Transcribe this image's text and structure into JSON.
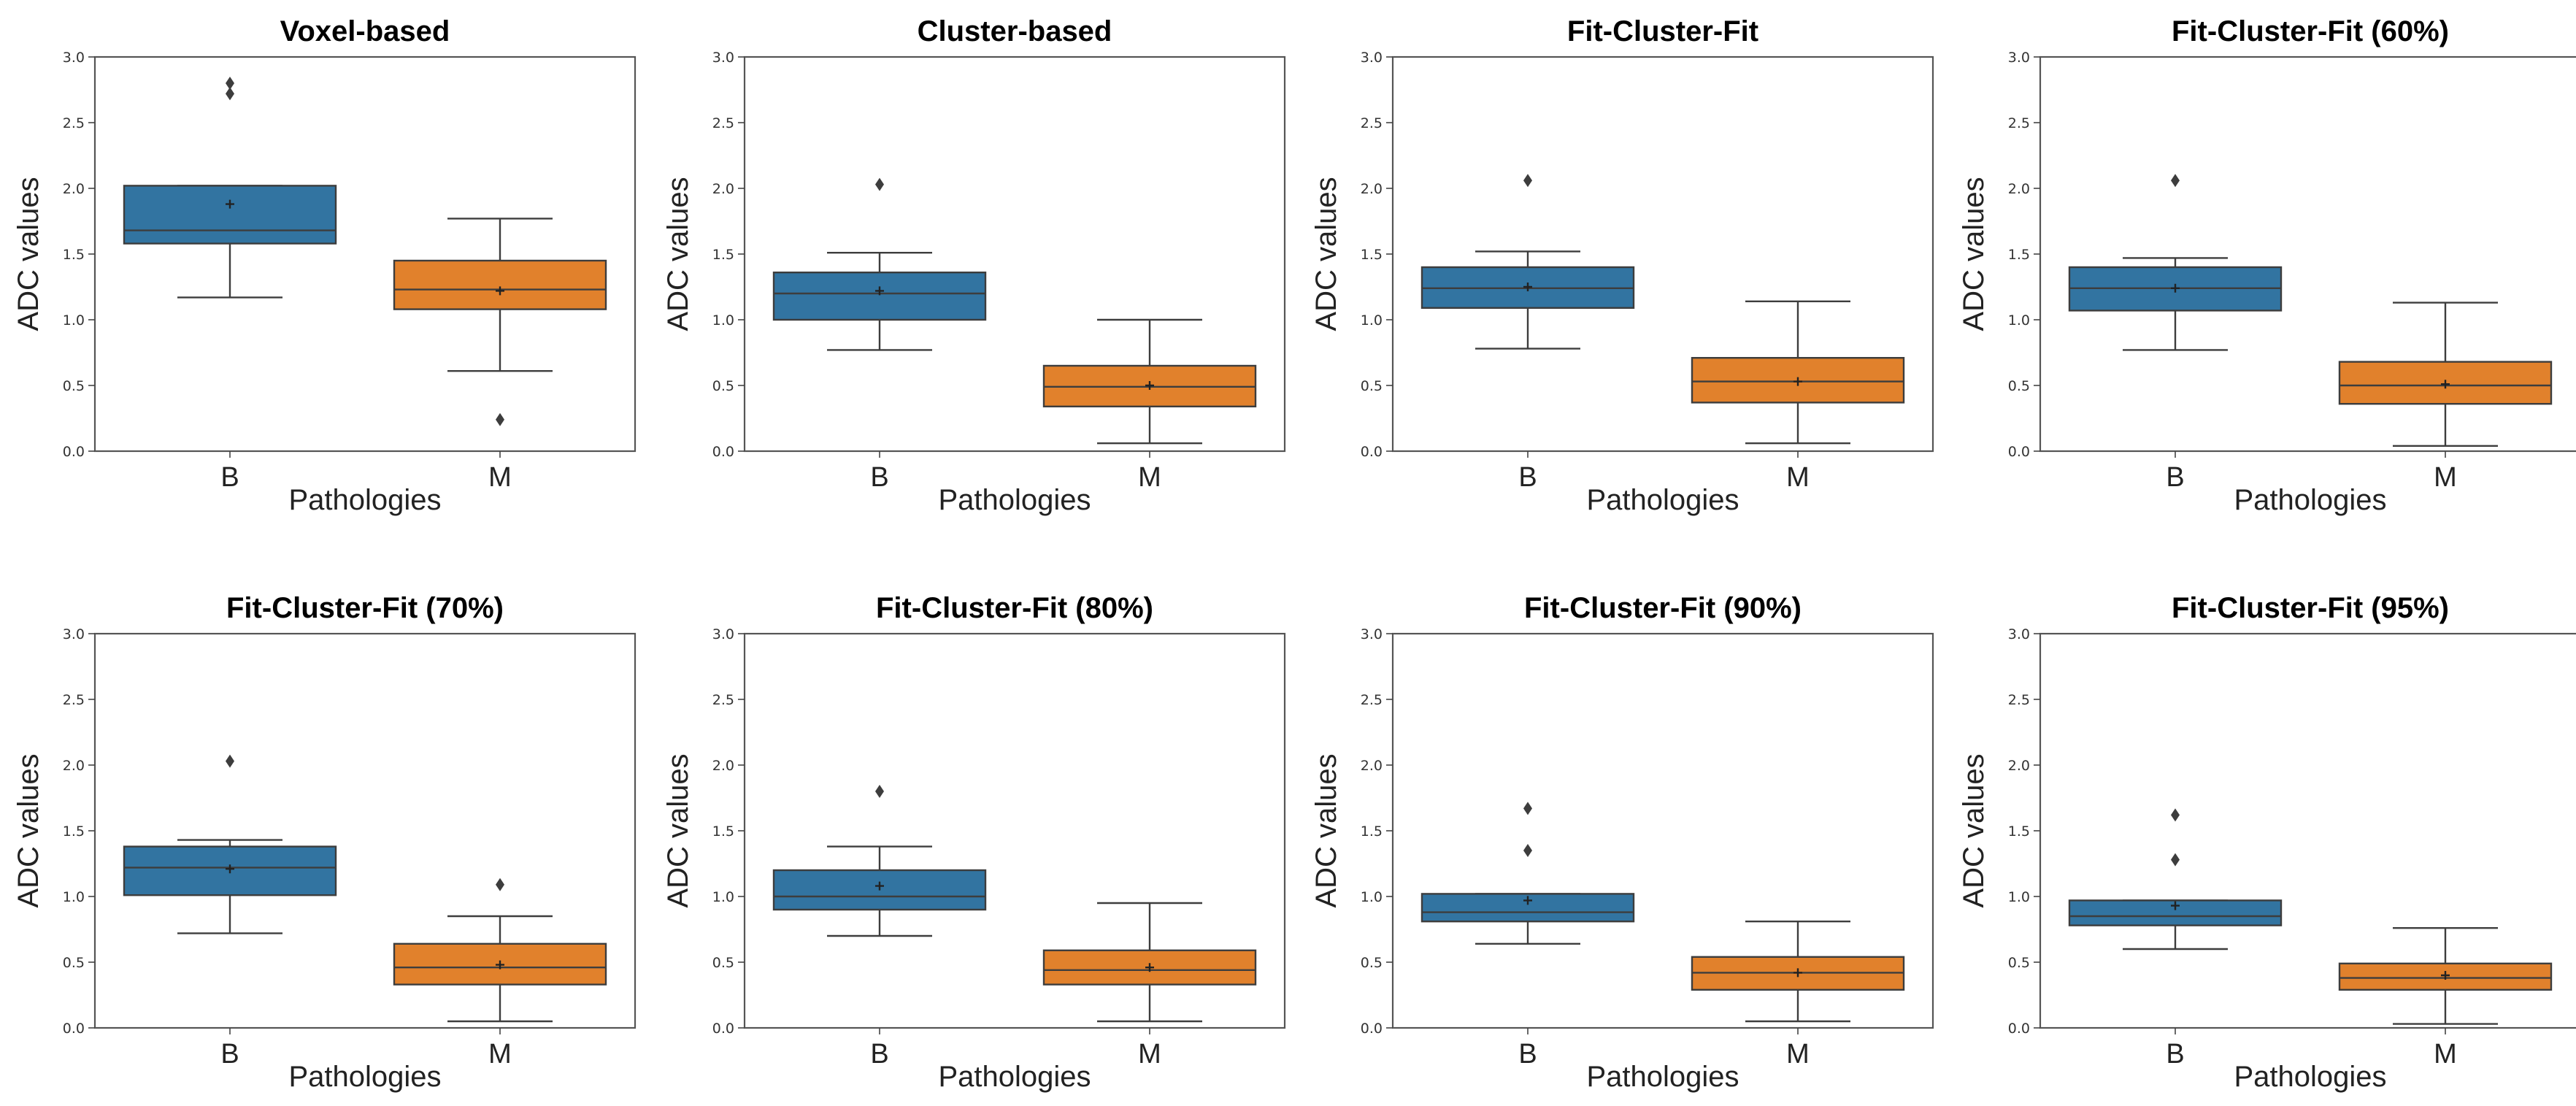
{
  "figure": {
    "colors": {
      "B": "#3274a1",
      "M": "#e1812c",
      "line": "#3d3d3d",
      "frame": "#555555"
    }
  },
  "chart_data": [
    {
      "type": "box",
      "title": "Voxel-based",
      "xlabel": "Pathologies",
      "ylabel": "ADC values",
      "ylim": [
        0.0,
        3.0
      ],
      "yticks": [
        "0.0",
        "0.5",
        "1.0",
        "1.5",
        "2.0",
        "2.5",
        "3.0"
      ],
      "categories": [
        "B",
        "M"
      ],
      "boxes": [
        {
          "category": "B",
          "whisker_low": 1.17,
          "q1": 1.58,
          "median": 1.68,
          "q3": 2.02,
          "whisker_high": 2.02,
          "mean": 1.88,
          "outliers": [
            2.72,
            2.8
          ]
        },
        {
          "category": "M",
          "whisker_low": 0.61,
          "q1": 1.08,
          "median": 1.23,
          "q3": 1.45,
          "whisker_high": 1.77,
          "mean": 1.22,
          "outliers": [
            0.24
          ]
        }
      ]
    },
    {
      "type": "box",
      "title": "Cluster-based",
      "xlabel": "Pathologies",
      "ylabel": "ADC values",
      "ylim": [
        0.0,
        3.0
      ],
      "yticks": [
        "0.0",
        "0.5",
        "1.0",
        "1.5",
        "2.0",
        "2.5",
        "3.0"
      ],
      "categories": [
        "B",
        "M"
      ],
      "boxes": [
        {
          "category": "B",
          "whisker_low": 0.77,
          "q1": 1.0,
          "median": 1.2,
          "q3": 1.36,
          "whisker_high": 1.51,
          "mean": 1.22,
          "outliers": [
            2.03
          ]
        },
        {
          "category": "M",
          "whisker_low": 0.06,
          "q1": 0.34,
          "median": 0.49,
          "q3": 0.65,
          "whisker_high": 1.0,
          "mean": 0.5,
          "outliers": []
        }
      ]
    },
    {
      "type": "box",
      "title": "Fit-Cluster-Fit",
      "xlabel": "Pathologies",
      "ylabel": "ADC values",
      "ylim": [
        0.0,
        3.0
      ],
      "yticks": [
        "0.0",
        "0.5",
        "1.0",
        "1.5",
        "2.0",
        "2.5",
        "3.0"
      ],
      "categories": [
        "B",
        "M"
      ],
      "boxes": [
        {
          "category": "B",
          "whisker_low": 0.78,
          "q1": 1.09,
          "median": 1.24,
          "q3": 1.4,
          "whisker_high": 1.52,
          "mean": 1.25,
          "outliers": [
            2.06
          ]
        },
        {
          "category": "M",
          "whisker_low": 0.06,
          "q1": 0.37,
          "median": 0.53,
          "q3": 0.71,
          "whisker_high": 1.14,
          "mean": 0.53,
          "outliers": []
        }
      ]
    },
    {
      "type": "box",
      "title": "Fit-Cluster-Fit (60%)",
      "xlabel": "Pathologies",
      "ylabel": "ADC values",
      "ylim": [
        0.0,
        3.0
      ],
      "yticks": [
        "0.0",
        "0.5",
        "1.0",
        "1.5",
        "2.0",
        "2.5",
        "3.0"
      ],
      "categories": [
        "B",
        "M"
      ],
      "boxes": [
        {
          "category": "B",
          "whisker_low": 0.77,
          "q1": 1.07,
          "median": 1.24,
          "q3": 1.4,
          "whisker_high": 1.47,
          "mean": 1.24,
          "outliers": [
            2.06
          ]
        },
        {
          "category": "M",
          "whisker_low": 0.04,
          "q1": 0.36,
          "median": 0.5,
          "q3": 0.68,
          "whisker_high": 1.13,
          "mean": 0.51,
          "outliers": []
        }
      ]
    },
    {
      "type": "box",
      "title": "Fit-Cluster-Fit (70%)",
      "xlabel": "Pathologies",
      "ylabel": "ADC values",
      "ylim": [
        0.0,
        3.0
      ],
      "yticks": [
        "0.0",
        "0.5",
        "1.0",
        "1.5",
        "2.0",
        "2.5",
        "3.0"
      ],
      "categories": [
        "B",
        "M"
      ],
      "boxes": [
        {
          "category": "B",
          "whisker_low": 0.72,
          "q1": 1.01,
          "median": 1.22,
          "q3": 1.38,
          "whisker_high": 1.43,
          "mean": 1.21,
          "outliers": [
            2.03
          ]
        },
        {
          "category": "M",
          "whisker_low": 0.05,
          "q1": 0.33,
          "median": 0.46,
          "q3": 0.64,
          "whisker_high": 0.85,
          "mean": 0.48,
          "outliers": [
            1.09
          ]
        }
      ]
    },
    {
      "type": "box",
      "title": "Fit-Cluster-Fit (80%)",
      "xlabel": "Pathologies",
      "ylabel": "ADC values",
      "ylim": [
        0.0,
        3.0
      ],
      "yticks": [
        "0.0",
        "0.5",
        "1.0",
        "1.5",
        "2.0",
        "2.5",
        "3.0"
      ],
      "categories": [
        "B",
        "M"
      ],
      "boxes": [
        {
          "category": "B",
          "whisker_low": 0.7,
          "q1": 0.9,
          "median": 1.0,
          "q3": 1.2,
          "whisker_high": 1.38,
          "mean": 1.08,
          "outliers": [
            1.8
          ]
        },
        {
          "category": "M",
          "whisker_low": 0.05,
          "q1": 0.33,
          "median": 0.44,
          "q3": 0.59,
          "whisker_high": 0.95,
          "mean": 0.46,
          "outliers": []
        }
      ]
    },
    {
      "type": "box",
      "title": "Fit-Cluster-Fit (90%)",
      "xlabel": "Pathologies",
      "ylabel": "ADC values",
      "ylim": [
        0.0,
        3.0
      ],
      "yticks": [
        "0.0",
        "0.5",
        "1.0",
        "1.5",
        "2.0",
        "2.5",
        "3.0"
      ],
      "categories": [
        "B",
        "M"
      ],
      "boxes": [
        {
          "category": "B",
          "whisker_low": 0.64,
          "q1": 0.81,
          "median": 0.88,
          "q3": 1.02,
          "whisker_high": 1.02,
          "mean": 0.97,
          "outliers": [
            1.35,
            1.67
          ]
        },
        {
          "category": "M",
          "whisker_low": 0.05,
          "q1": 0.29,
          "median": 0.42,
          "q3": 0.54,
          "whisker_high": 0.81,
          "mean": 0.42,
          "outliers": []
        }
      ]
    },
    {
      "type": "box",
      "title": "Fit-Cluster-Fit (95%)",
      "xlabel": "Pathologies",
      "ylabel": "ADC values",
      "ylim": [
        0.0,
        3.0
      ],
      "yticks": [
        "0.0",
        "0.5",
        "1.0",
        "1.5",
        "2.0",
        "2.5",
        "3.0"
      ],
      "categories": [
        "B",
        "M"
      ],
      "boxes": [
        {
          "category": "B",
          "whisker_low": 0.6,
          "q1": 0.78,
          "median": 0.85,
          "q3": 0.97,
          "whisker_high": 0.97,
          "mean": 0.93,
          "outliers": [
            1.28,
            1.62
          ]
        },
        {
          "category": "M",
          "whisker_low": 0.03,
          "q1": 0.29,
          "median": 0.38,
          "q3": 0.49,
          "whisker_high": 0.76,
          "mean": 0.4,
          "outliers": []
        }
      ]
    }
  ]
}
